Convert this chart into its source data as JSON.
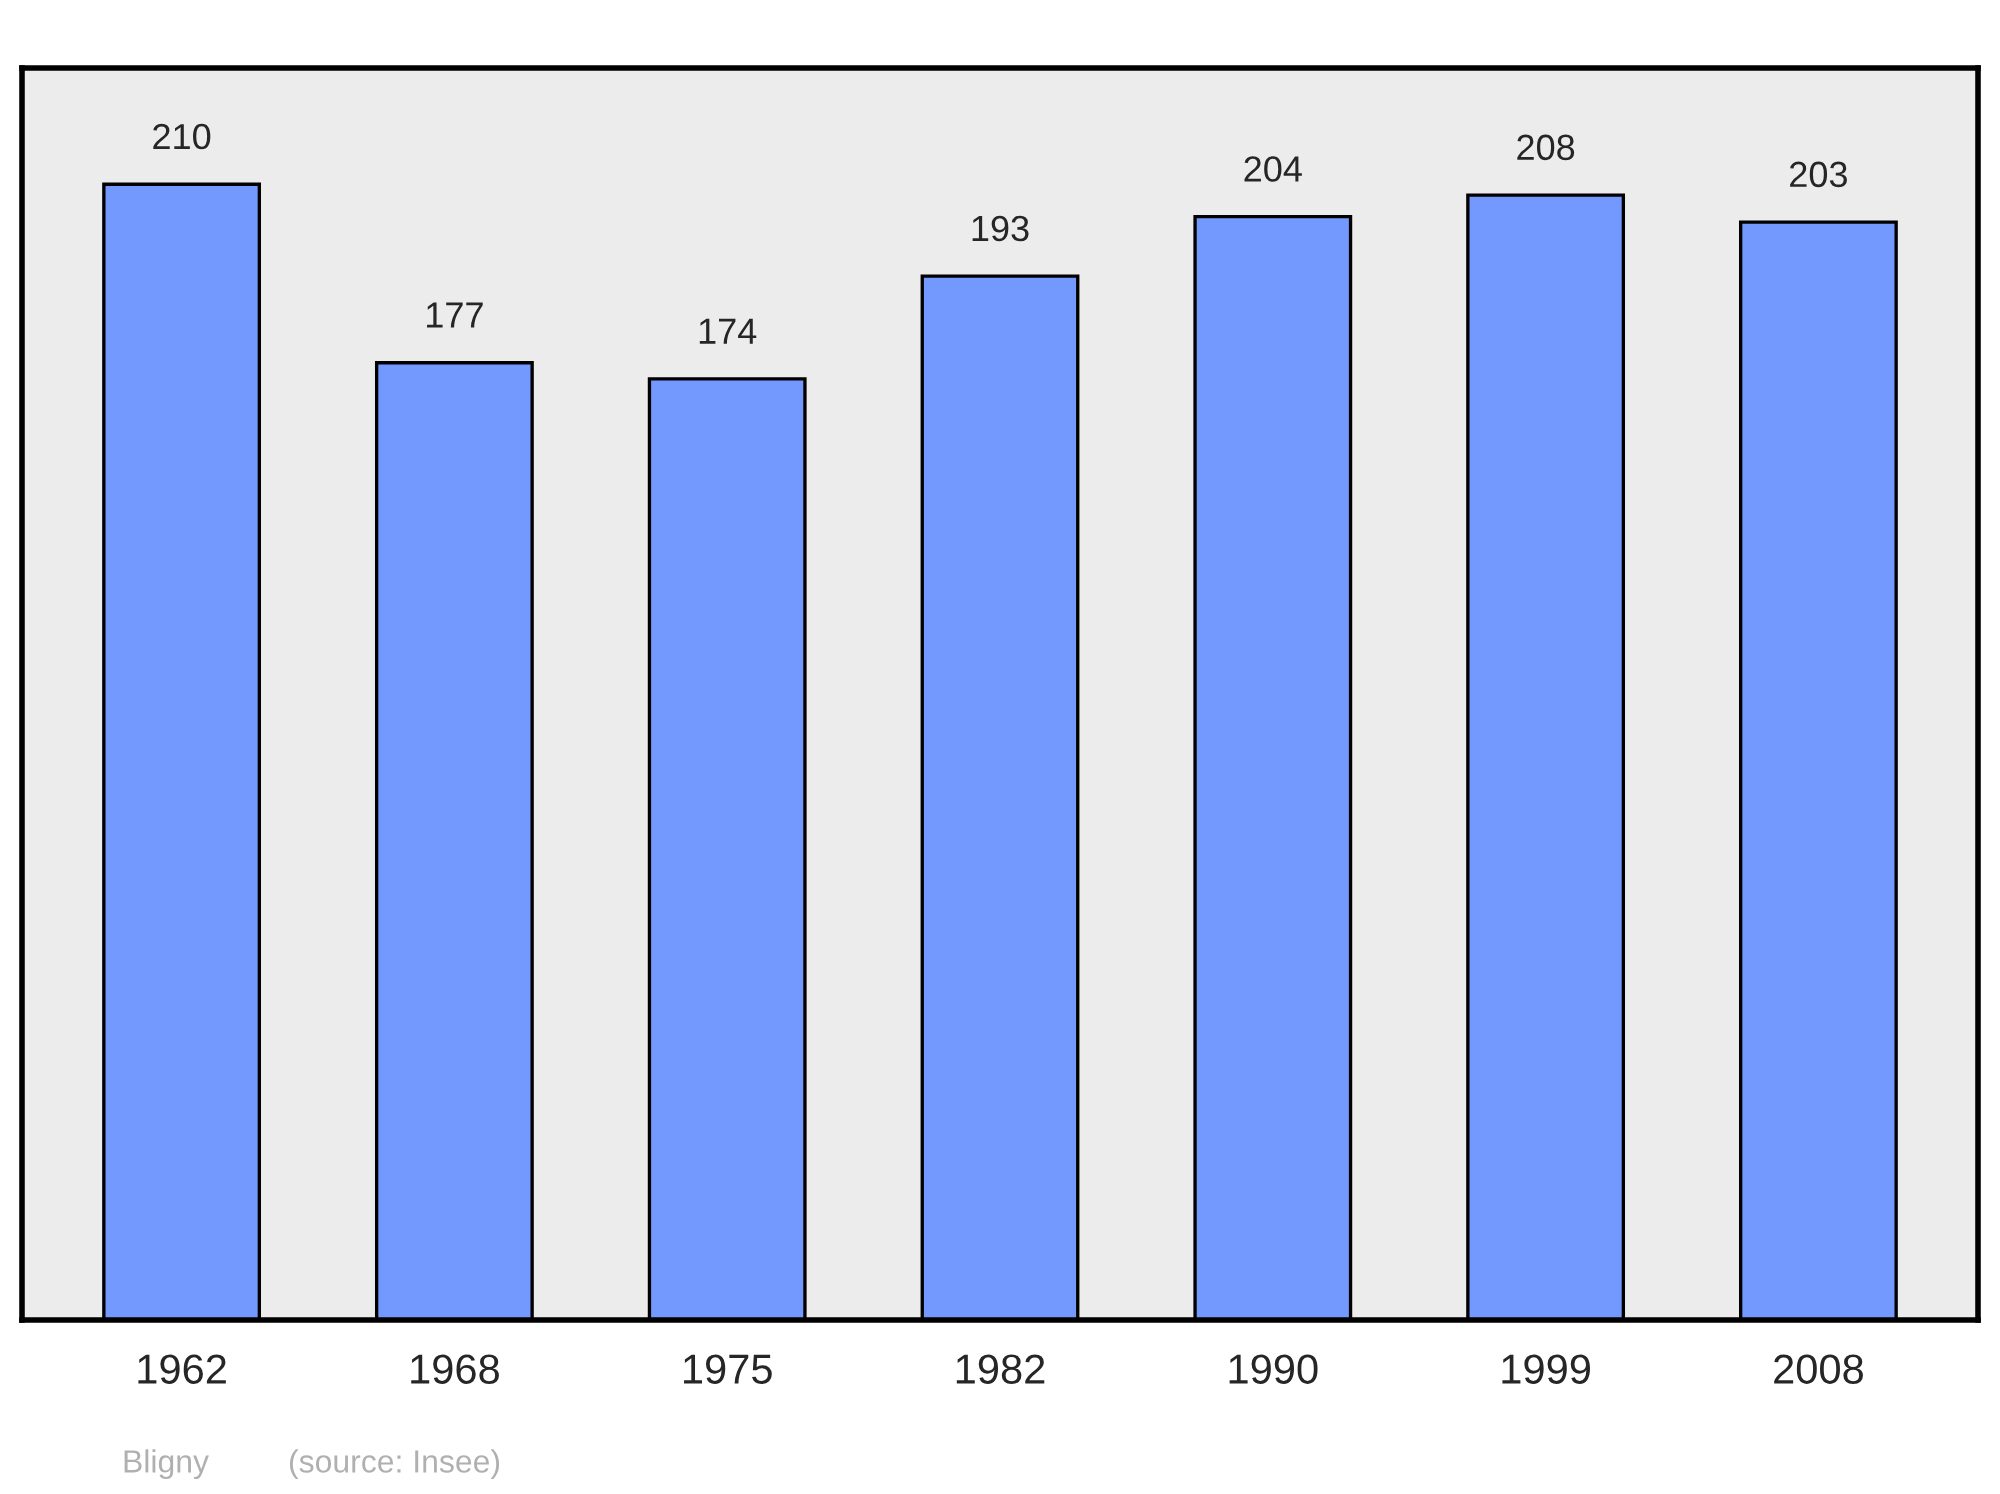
{
  "chart_data": {
    "type": "bar",
    "categories": [
      "1962",
      "1968",
      "1975",
      "1982",
      "1990",
      "1999",
      "2008"
    ],
    "values": [
      210,
      177,
      174,
      193,
      204,
      208,
      203
    ],
    "color": "#7399ff",
    "ylim": [
      0,
      231.5
    ],
    "tick_labels": "x",
    "data_labels": true,
    "grid": false,
    "legend": false,
    "annotations": [
      "Bligny",
      "(source: Insee)"
    ]
  }
}
